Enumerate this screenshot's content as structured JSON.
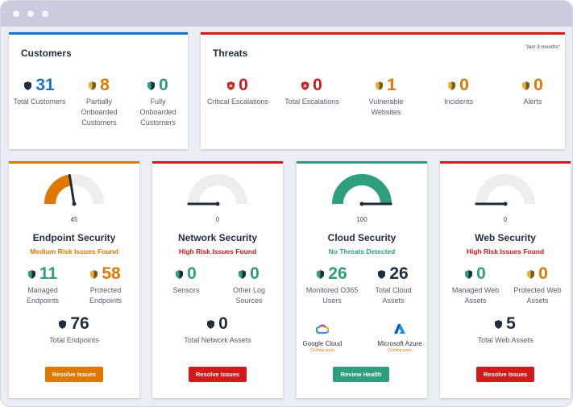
{
  "colors": {
    "blue": "#1a73c8",
    "orange": "#e07800",
    "red": "#d11a1a",
    "green": "#2e9e7e",
    "navy": "#1f2d3d"
  },
  "customers": {
    "title": "Customers",
    "stats": [
      {
        "value": "31",
        "label": "Total Customers",
        "icon": "shield-navy-icon"
      },
      {
        "value": "8",
        "label": "Partially Onboarded Customers",
        "icon": "shield-orange-icon"
      },
      {
        "value": "0",
        "label": "Fully Onboarded Customers",
        "icon": "shield-green-icon"
      }
    ]
  },
  "threats": {
    "title": "Threats",
    "period": "\"last 3 months\"",
    "stats": [
      {
        "value": "0",
        "label": "Critical Escalations",
        "icon": "shield-red-icon"
      },
      {
        "value": "0",
        "label": "Total Escalations",
        "icon": "shield-red-icon"
      },
      {
        "value": "1",
        "label": "Vulnerable Websites",
        "icon": "shield-orange-icon"
      },
      {
        "value": "0",
        "label": "Incidents",
        "icon": "shield-orange-icon"
      },
      {
        "value": "0",
        "label": "Alerts",
        "icon": "shield-orange-icon"
      }
    ]
  },
  "panels": [
    {
      "title": "Endpoint Security",
      "gauge": 45,
      "gauge_label": "45",
      "status": "Medium Risk Issues Found",
      "button": "Resolve Issues",
      "stats": [
        {
          "value": "11",
          "label": "Managed Endpoints"
        },
        {
          "value": "58",
          "label": "Protected Endpoints"
        },
        {
          "value": "76",
          "label": "Total Endpoints"
        }
      ]
    },
    {
      "title": "Network Security",
      "gauge": 0,
      "gauge_label": "0",
      "status": "High Risk Issues Found",
      "button": "Resolve Issues",
      "stats": [
        {
          "value": "0",
          "label": "Sensors"
        },
        {
          "value": "0",
          "label": "Other Log Sources"
        },
        {
          "value": "0",
          "label": "Total Network Assets"
        }
      ]
    },
    {
      "title": "Cloud Security",
      "gauge": 100,
      "gauge_label": "100",
      "status": "No Threats Detected",
      "button": "Review Health",
      "stats": [
        {
          "value": "26",
          "label": "Monitored O365 Users"
        },
        {
          "value": "26",
          "label": "Total Cloud Assets"
        }
      ],
      "clouds": [
        {
          "name": "Google Cloud",
          "note": "Coming soon",
          "icon": "google-cloud-icon"
        },
        {
          "name": "Microsoft Azure",
          "note": "Coming soon",
          "icon": "azure-icon"
        }
      ]
    },
    {
      "title": "Web Security",
      "gauge": 0,
      "gauge_label": "0",
      "status": "High Risk Issues Found",
      "button": "Resolve Issues",
      "stats": [
        {
          "value": "0",
          "label": "Managed Web Assets"
        },
        {
          "value": "0",
          "label": "Protected Web Assets"
        },
        {
          "value": "5",
          "label": "Total Web Assets"
        }
      ]
    }
  ]
}
